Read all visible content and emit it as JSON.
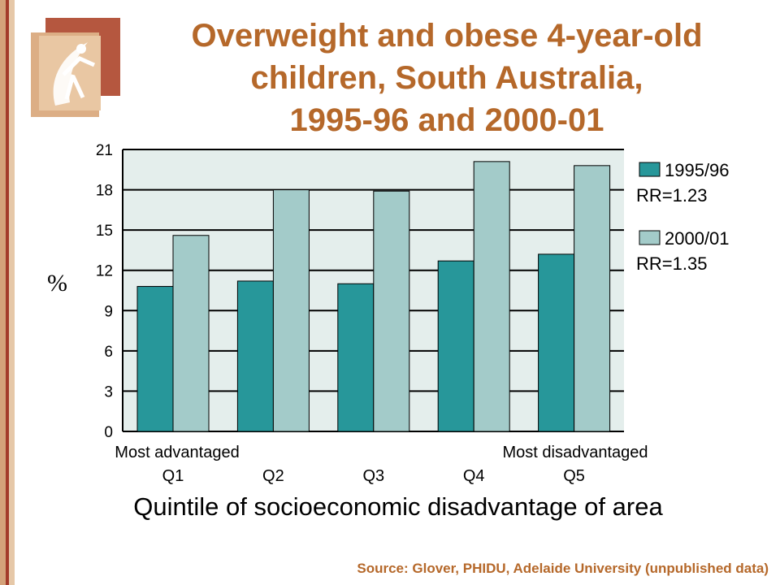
{
  "title": {
    "line1": "Overweight and obese 4-year-old",
    "line2": "children, South Australia,",
    "line3": "1995-96 and 2000-01"
  },
  "source": "Source: Glover, PHIDU, Adelaide University (unpublished data)",
  "colors": {
    "series1": "#27979a",
    "series2": "#a3cbc9",
    "plot_bg": "#e4eeec",
    "title": "#b5682a"
  },
  "chart_data": {
    "type": "bar",
    "categories": [
      "Q1",
      "Q2",
      "Q3",
      "Q4",
      "Q5"
    ],
    "category_sublabels": {
      "first": "Most advantaged",
      "last": "Most disadvantaged"
    },
    "series": [
      {
        "name": "1995/96",
        "values": [
          10.8,
          11.2,
          11.0,
          12.7,
          13.2
        ],
        "note": "RR=1.23"
      },
      {
        "name": "2000/01",
        "values": [
          14.6,
          18.0,
          17.9,
          20.1,
          19.8
        ],
        "note": "RR=1.35"
      }
    ],
    "ylabel": "%",
    "xlabel": "Quintile of socioeconomic disadvantage of area",
    "ylim": [
      0,
      21
    ],
    "yticks": [
      "0",
      "3",
      "6",
      "9",
      "12",
      "15",
      "18",
      "21"
    ],
    "grid": true,
    "legend_position": "right"
  }
}
